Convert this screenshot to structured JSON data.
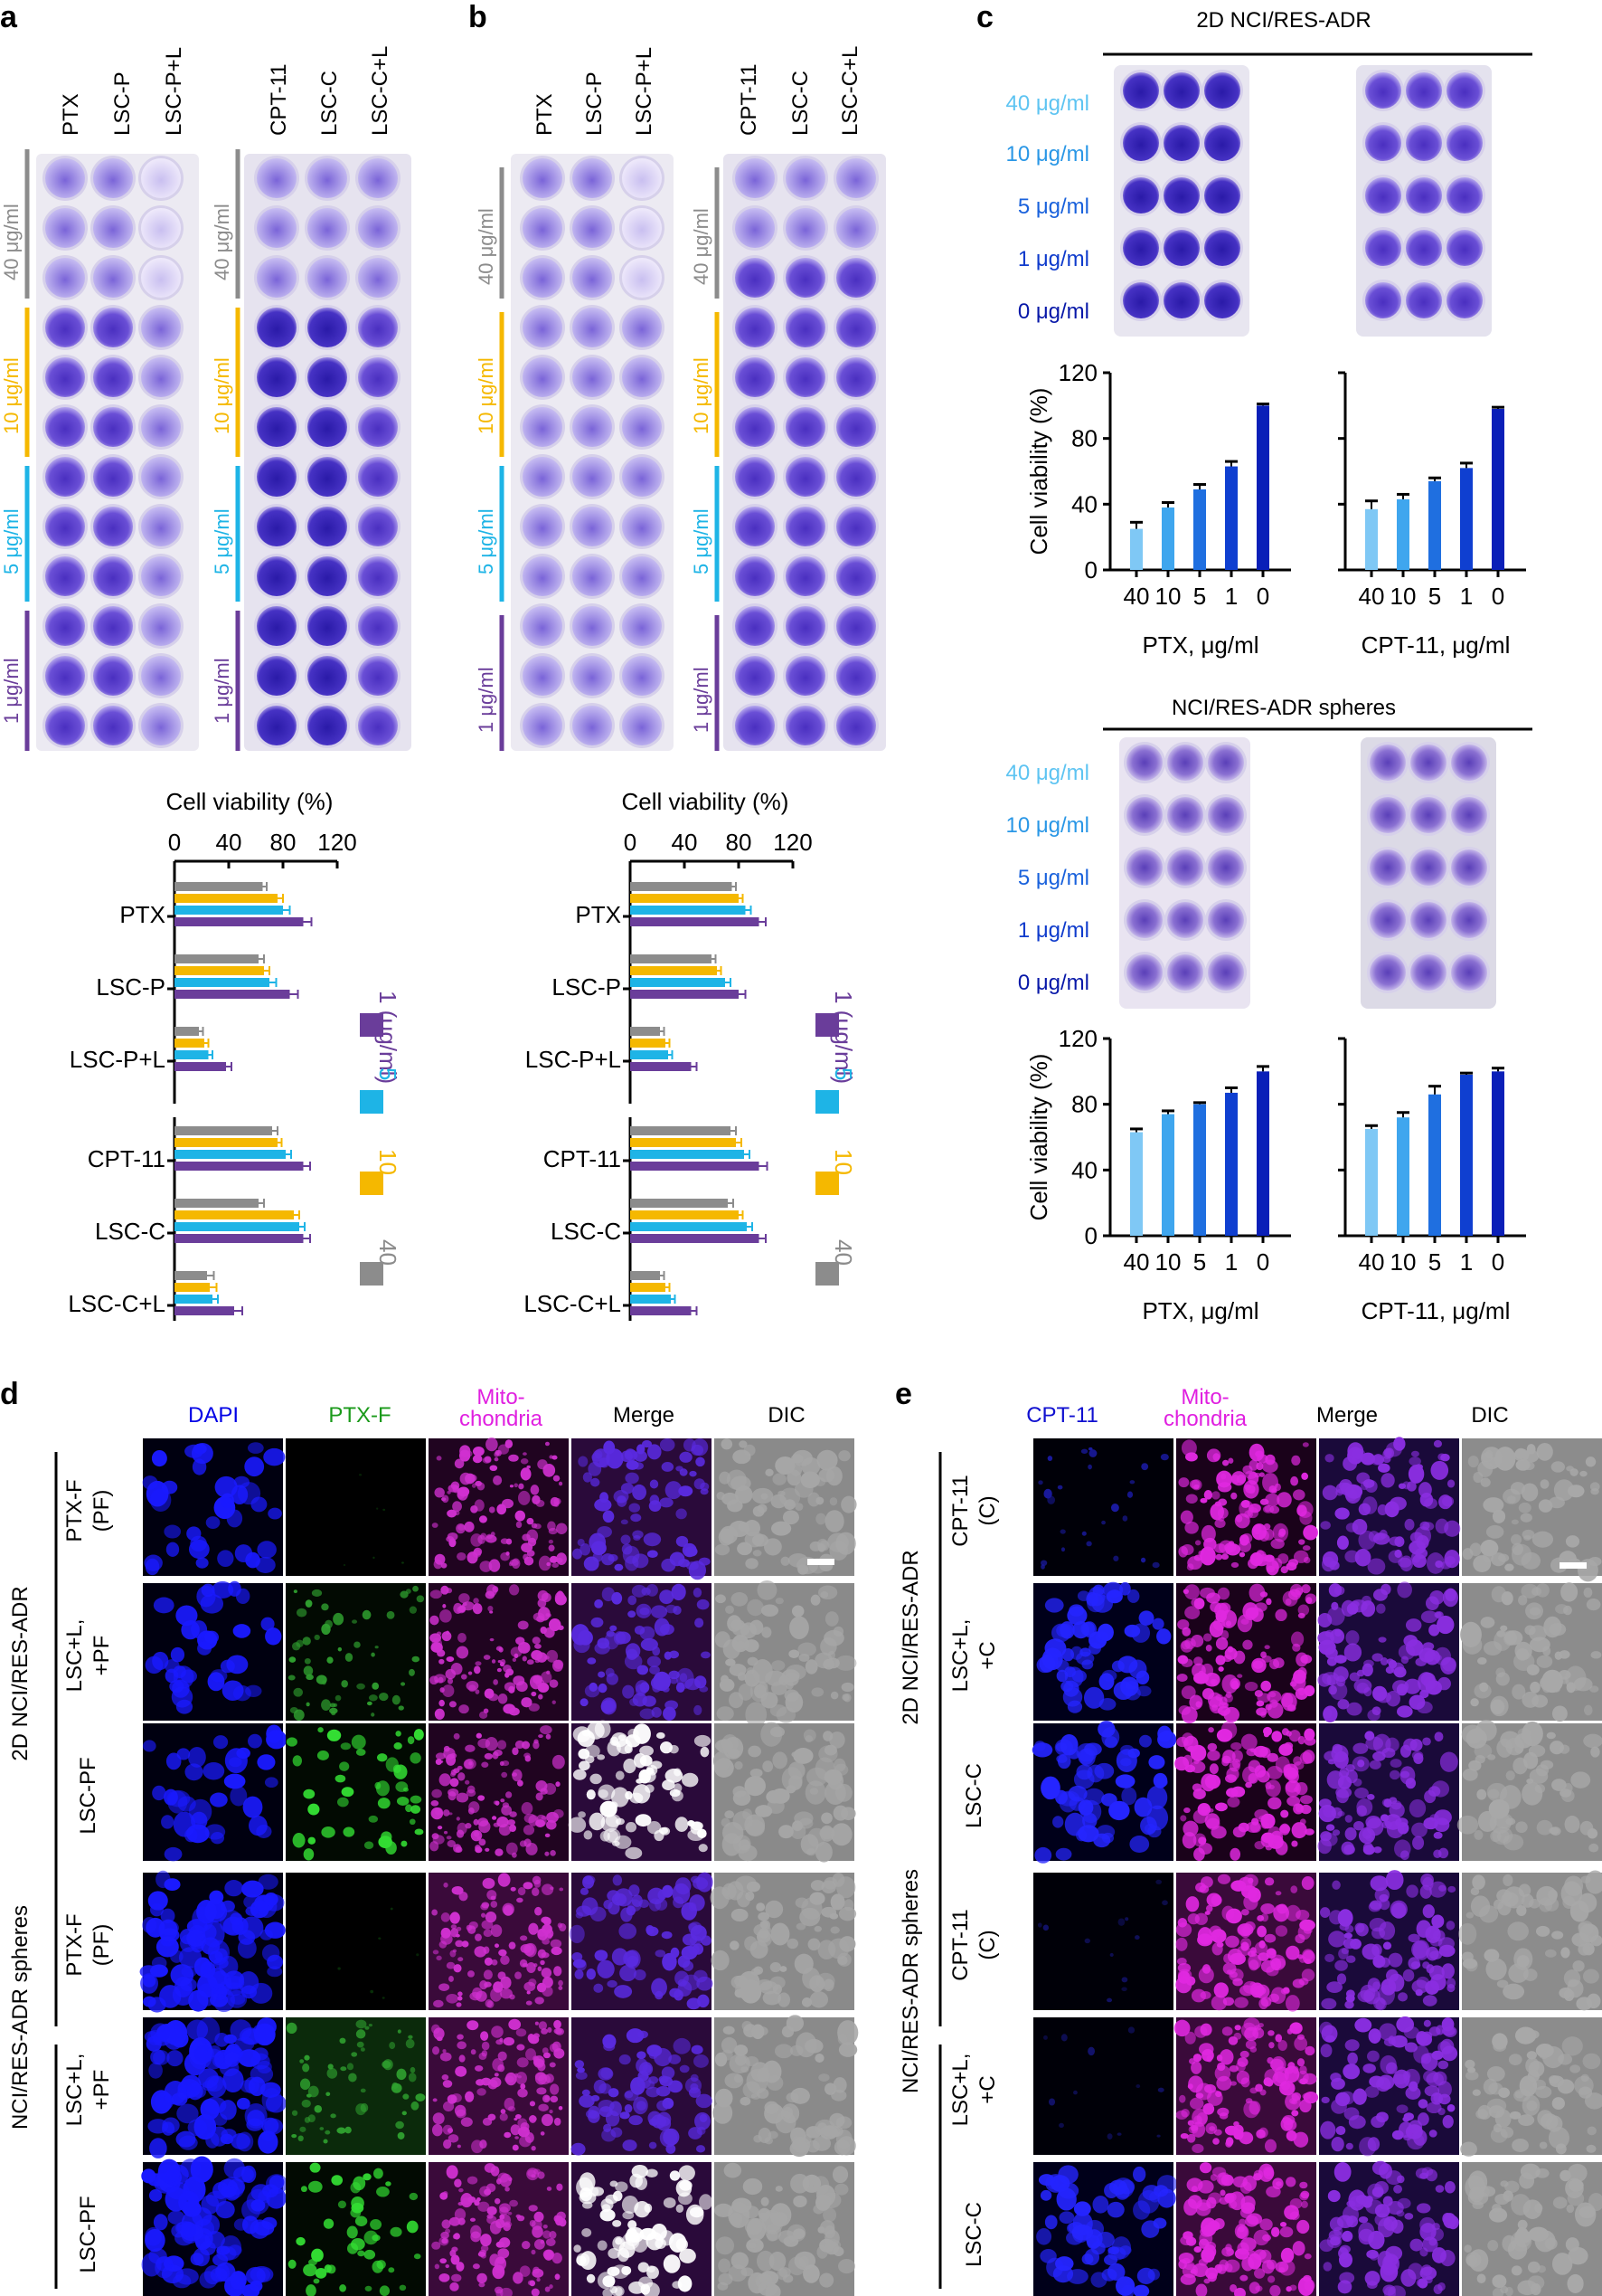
{
  "panel_letters": [
    "a",
    "b",
    "c",
    "d",
    "e"
  ],
  "colors": {
    "gray": "#8c8c8c",
    "yellow": "#f5b800",
    "cyan": "#1eb4e6",
    "purple": "#6a3d9a",
    "c_bar_colors": [
      "#7fc8f5",
      "#3fa6ee",
      "#1f6fe0",
      "#0f3fd0",
      "#0a1fb8"
    ],
    "c_label_colors": [
      "#5ec4f2",
      "#2a97e6",
      "#1a62dc",
      "#0f3bcc",
      "#0818a8"
    ],
    "dapi": "#0000e6",
    "ptxf": "#1a9a1a",
    "mito": "#e020e0",
    "cpt": "#1010d0"
  },
  "panel_a": {
    "drug_labels": [
      "PTX",
      "LSC-P",
      "LSC-P+L",
      "CPT-11",
      "LSC-C",
      "LSC-C+L"
    ],
    "plate_conc_labels": [
      "40 μg/ml",
      "10 μg/ml",
      "5 μg/ml",
      "1 μg/ml"
    ]
  },
  "panel_b": {
    "drug_labels": [
      "PTX",
      "LSC-P",
      "LSC-P+L",
      "CPT-11",
      "LSC-C",
      "LSC-C+L"
    ],
    "plate_conc_labels": [
      "40 μg/ml",
      "10 μg/ml",
      "5 μg/ml",
      "1 μg/ml"
    ]
  },
  "chart_data": [
    {
      "id": "a-bar",
      "type": "bar",
      "orientation": "horizontal",
      "title": "Cell viability (%)",
      "xlim": [
        0,
        120
      ],
      "ticks": [
        "0",
        "40",
        "80",
        "120"
      ],
      "categories": [
        "PTX",
        "LSC-P",
        "LSC-P+L",
        "CPT-11",
        "LSC-C",
        "LSC-C+L"
      ],
      "series": [
        {
          "name": "40",
          "color": "#8c8c8c",
          "values": [
            65,
            62,
            18,
            72,
            62,
            24
          ],
          "errors": [
            3,
            4,
            3,
            4,
            4,
            5
          ]
        },
        {
          "name": "10",
          "color": "#f5b800",
          "values": [
            76,
            66,
            22,
            76,
            88,
            26
          ],
          "errors": [
            4,
            4,
            3,
            3,
            4,
            5
          ]
        },
        {
          "name": "5",
          "color": "#1eb4e6",
          "values": [
            80,
            70,
            25,
            82,
            92,
            28
          ],
          "errors": [
            5,
            5,
            3,
            4,
            4,
            4
          ]
        },
        {
          "name": "1 (μg/ml)",
          "color": "#6a3d9a",
          "values": [
            95,
            85,
            38,
            95,
            95,
            44
          ],
          "errors": [
            6,
            6,
            4,
            5,
            5,
            6
          ]
        }
      ],
      "legend": [
        "1 (μg/ml)",
        "5",
        "10",
        "40"
      ]
    },
    {
      "id": "b-bar",
      "type": "bar",
      "orientation": "horizontal",
      "title": "Cell viability (%)",
      "xlim": [
        0,
        120
      ],
      "ticks": [
        "0",
        "40",
        "80",
        "120"
      ],
      "categories": [
        "PTX",
        "LSC-P",
        "LSC-P+L",
        "CPT-11",
        "LSC-C",
        "LSC-C+L"
      ],
      "series": [
        {
          "name": "40",
          "color": "#8c8c8c",
          "values": [
            75,
            60,
            22,
            74,
            72,
            22
          ],
          "errors": [
            3,
            3,
            3,
            4,
            4,
            3
          ]
        },
        {
          "name": "10",
          "color": "#f5b800",
          "values": [
            80,
            64,
            26,
            78,
            80,
            26
          ],
          "errors": [
            3,
            3,
            3,
            4,
            3,
            3
          ]
        },
        {
          "name": "5",
          "color": "#1eb4e6",
          "values": [
            85,
            70,
            28,
            84,
            86,
            30
          ],
          "errors": [
            4,
            4,
            3,
            4,
            4,
            3
          ]
        },
        {
          "name": "1 (μg/ml)",
          "color": "#6a3d9a",
          "values": [
            95,
            80,
            45,
            95,
            95,
            45
          ],
          "errors": [
            5,
            5,
            4,
            6,
            5,
            4
          ]
        }
      ],
      "legend": [
        "1 (μg/ml)",
        "5",
        "10",
        "40"
      ]
    },
    {
      "id": "c-2d-ptx",
      "type": "bar",
      "title": "2D NCI/RES-ADR",
      "xlabel": "PTX, μg/ml",
      "ylabel": "Cell viability (%)",
      "ylim": [
        0,
        120
      ],
      "yticks": [
        "0",
        "40",
        "80",
        "120"
      ],
      "categories": [
        "40",
        "10",
        "5",
        "1",
        "0"
      ],
      "values": [
        25,
        38,
        49,
        63,
        100
      ],
      "errors": [
        4,
        3,
        3,
        3,
        1
      ]
    },
    {
      "id": "c-2d-cpt",
      "type": "bar",
      "xlabel": "CPT-11, μg/ml",
      "ylim": [
        0,
        120
      ],
      "categories": [
        "40",
        "10",
        "5",
        "1",
        "0"
      ],
      "values": [
        37,
        43,
        54,
        62,
        98
      ],
      "errors": [
        5,
        3,
        2,
        3,
        1
      ]
    },
    {
      "id": "c-sph-ptx",
      "type": "bar",
      "title": "NCI/RES-ADR spheres",
      "xlabel": "PTX, μg/ml",
      "ylabel": "Cell viability (%)",
      "ylim": [
        0,
        120
      ],
      "yticks": [
        "0",
        "40",
        "80",
        "120"
      ],
      "categories": [
        "40",
        "10",
        "5",
        "1",
        "0"
      ],
      "values": [
        63,
        74,
        80,
        87,
        100
      ],
      "errors": [
        2,
        2,
        1,
        3,
        3
      ]
    },
    {
      "id": "c-sph-cpt",
      "type": "bar",
      "xlabel": "CPT-11, μg/ml",
      "ylim": [
        0,
        120
      ],
      "categories": [
        "40",
        "10",
        "5",
        "1",
        "0"
      ],
      "values": [
        65,
        72,
        86,
        98,
        100
      ],
      "errors": [
        2,
        3,
        5,
        1,
        2
      ]
    }
  ],
  "panel_c": {
    "title_top": "2D NCI/RES-ADR",
    "title_bottom": "NCI/RES-ADR spheres",
    "plate_conc_labels": [
      "40 μg/ml",
      "10 μg/ml",
      "5 μg/ml",
      "1 μg/ml",
      "0 μg/ml"
    ]
  },
  "panel_d": {
    "columns": [
      "DAPI",
      "PTX-F",
      "Mito-",
      "chondria",
      "Merge",
      "DIC"
    ],
    "group_labels": [
      "2D NCI/RES-ADR",
      "NCI/RES-ADR spheres"
    ],
    "rows": [
      [
        "PTX-F",
        "(PF)"
      ],
      [
        "LSC+L,",
        "+PF"
      ],
      [
        "LSC-PF",
        ""
      ]
    ]
  },
  "panel_e": {
    "columns": [
      "CPT-11",
      "Mito-",
      "chondria",
      "Merge",
      "DIC"
    ],
    "group_labels": [
      "2D NCI/RES-ADR",
      "NCI/RES-ADR spheres"
    ],
    "rows": [
      [
        "CPT-11",
        "(C)"
      ],
      [
        "LSC+L,",
        "+C"
      ],
      [
        "LSC-C",
        ""
      ]
    ]
  }
}
